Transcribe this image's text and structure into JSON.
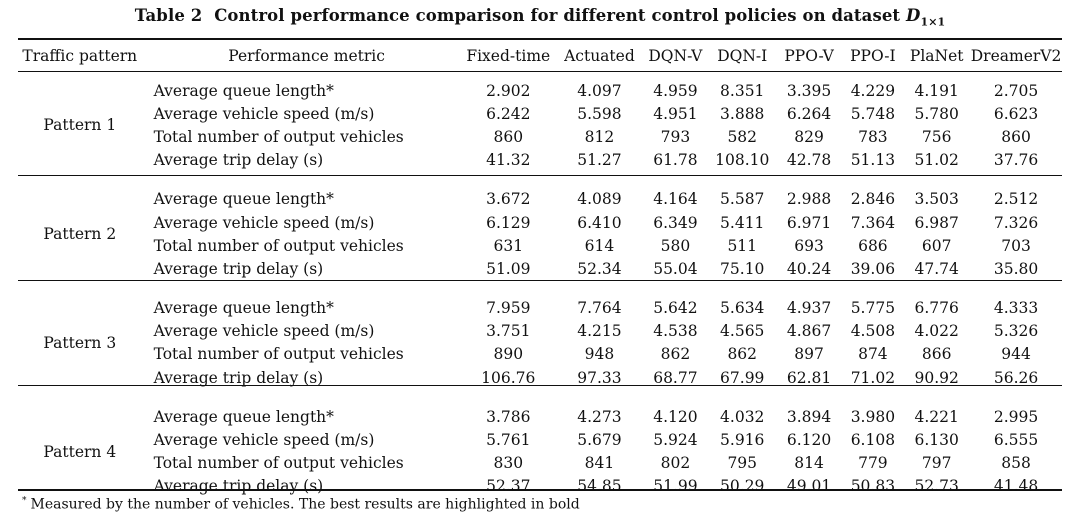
{
  "caption": {
    "number": "Table 2",
    "text": "Control performance comparison for different control policies on dataset",
    "dataset": "D",
    "dataset_sub": "1×1"
  },
  "header": {
    "traffic_pattern": "Traffic pattern",
    "metric": "Performance metric",
    "methods": [
      "Fixed-time",
      "Actuated",
      "DQN-V",
      "DQN-I",
      "PPO-V",
      "PPO-I",
      "PlaNet",
      "DreamerV2"
    ]
  },
  "groups": [
    {
      "pattern": "Pattern 1",
      "rows": [
        {
          "metric": "Average queue length*",
          "values": [
            "2.902",
            "4.097",
            "4.959",
            "8.351",
            "3.395",
            "4.229",
            "4.191",
            "2.705"
          ],
          "bold": [
            7
          ]
        },
        {
          "metric": "Average vehicle speed (m/s)",
          "values": [
            "6.242",
            "5.598",
            "4.951",
            "3.888",
            "6.264",
            "5.748",
            "5.780",
            "6.623"
          ],
          "bold": [
            7
          ]
        },
        {
          "metric": "Total number of output vehicles",
          "values": [
            "860",
            "812",
            "793",
            "582",
            "829",
            "783",
            "756",
            "860"
          ],
          "bold": [
            0,
            7
          ]
        },
        {
          "metric": "Average trip delay (s)",
          "values": [
            "41.32",
            "51.27",
            "61.78",
            "108.10",
            "42.78",
            "51.13",
            "51.02",
            "37.76"
          ],
          "bold": [
            7
          ]
        }
      ]
    },
    {
      "pattern": "Pattern 2",
      "rows": [
        {
          "metric": "Average queue length*",
          "values": [
            "3.672",
            "4.089",
            "4.164",
            "5.587",
            "2.988",
            "2.846",
            "3.503",
            "2.512"
          ],
          "bold": [
            7
          ]
        },
        {
          "metric": "Average vehicle speed (m/s)",
          "values": [
            "6.129",
            "6.410",
            "6.349",
            "5.411",
            "6.971",
            "7.364",
            "6.987",
            "7.326"
          ],
          "bold": [
            5
          ]
        },
        {
          "metric": "Total number of output vehicles",
          "values": [
            "631",
            "614",
            "580",
            "511",
            "693",
            "686",
            "607",
            "703"
          ],
          "bold": [
            7
          ]
        },
        {
          "metric": "Average trip delay (s)",
          "values": [
            "51.09",
            "52.34",
            "55.04",
            "75.10",
            "40.24",
            "39.06",
            "47.74",
            "35.80"
          ],
          "bold": [
            7
          ]
        }
      ]
    },
    {
      "pattern": "Pattern 3",
      "rows": [
        {
          "metric": "Average queue length*",
          "values": [
            "7.959",
            "7.764",
            "5.642",
            "5.634",
            "4.937",
            "5.775",
            "6.776",
            "4.333"
          ],
          "bold": [
            7
          ]
        },
        {
          "metric": "Average vehicle speed (m/s)",
          "values": [
            "3.751",
            "4.215",
            "4.538",
            "4.565",
            "4.867",
            "4.508",
            "4.022",
            "5.326"
          ],
          "bold": [
            7
          ]
        },
        {
          "metric": "Total number of output vehicles",
          "values": [
            "890",
            "948",
            "862",
            "862",
            "897",
            "874",
            "866",
            "944"
          ],
          "bold": [
            1
          ]
        },
        {
          "metric": "Average trip delay (s)",
          "values": [
            "106.76",
            "97.33",
            "68.77",
            "67.99",
            "62.81",
            "71.02",
            "90.92",
            "56.26"
          ],
          "bold": [
            7
          ]
        }
      ]
    },
    {
      "pattern": "Pattern 4",
      "rows": [
        {
          "metric": "Average queue length*",
          "values": [
            "3.786",
            "4.273",
            "4.120",
            "4.032",
            "3.894",
            "3.980",
            "4.221",
            "2.995"
          ],
          "bold": [
            7
          ]
        },
        {
          "metric": "Average vehicle speed (m/s)",
          "values": [
            "5.761",
            "5.679",
            "5.924",
            "5.916",
            "6.120",
            "6.108",
            "6.130",
            "6.555"
          ],
          "bold": [
            7
          ]
        },
        {
          "metric": "Total number of output vehicles",
          "values": [
            "830",
            "841",
            "802",
            "795",
            "814",
            "779",
            "797",
            "858"
          ],
          "bold": [
            7
          ]
        },
        {
          "metric": "Average trip delay (s)",
          "values": [
            "52.37",
            "54.85",
            "51.99",
            "50.29",
            "49.01",
            "50.83",
            "52.73",
            "41.48"
          ],
          "bold": [
            7
          ]
        }
      ]
    }
  ],
  "footnote": {
    "mark": "*",
    "text": "Measured by the number of vehicles. The best results are highlighted in bold"
  }
}
